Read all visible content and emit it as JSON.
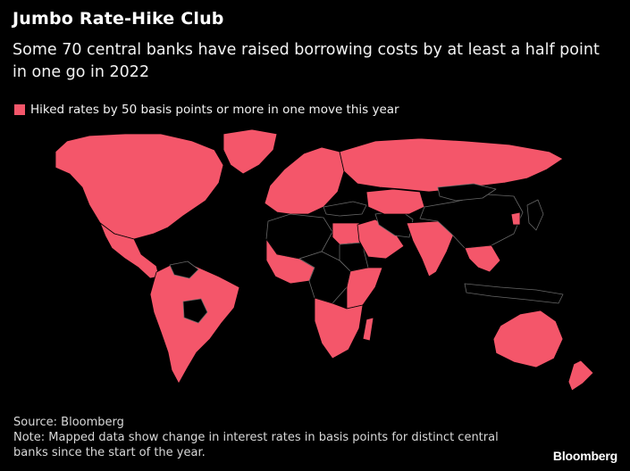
{
  "header": {
    "title": "Jumbo Rate-Hike Club",
    "subtitle": "Some 70 central banks have raised borrowing costs by at least a half point in one go in 2022"
  },
  "legend": {
    "label": "Hiked rates by 50 basis points or more in one move this year"
  },
  "footer": {
    "source": "Source: Bloomberg",
    "note": "Note: Mapped data show change in interest rates in basis points for distinct central banks since the start of the year."
  },
  "brand": "Bloomberg",
  "colors": {
    "hiked": "#f4566a",
    "not_hiked": "#000000",
    "border": "#000000",
    "background": "#000000"
  },
  "map_regions": [
    {
      "name": "North America",
      "hiked": true
    },
    {
      "name": "Greenland",
      "hiked": true
    },
    {
      "name": "Mexico and Central America",
      "hiked": true
    },
    {
      "name": "South America",
      "hiked": true
    },
    {
      "name": "Bolivia",
      "hiked": false
    },
    {
      "name": "Venezuela",
      "hiked": false
    },
    {
      "name": "Europe",
      "hiked": true
    },
    {
      "name": "Russia",
      "hiked": true
    },
    {
      "name": "Turkey",
      "hiked": false
    },
    {
      "name": "North Africa (west)",
      "hiked": false
    },
    {
      "name": "Egypt",
      "hiked": true
    },
    {
      "name": "Sudan",
      "hiked": false
    },
    {
      "name": "West Africa",
      "hiked": true
    },
    {
      "name": "Central Africa",
      "hiked": false
    },
    {
      "name": "East Africa",
      "hiked": true
    },
    {
      "name": "Southern Africa",
      "hiked": true
    },
    {
      "name": "Madagascar",
      "hiked": true
    },
    {
      "name": "Arabian Peninsula",
      "hiked": true
    },
    {
      "name": "Iran",
      "hiked": false
    },
    {
      "name": "Central Asia",
      "hiked": true
    },
    {
      "name": "India",
      "hiked": true
    },
    {
      "name": "China",
      "hiked": false
    },
    {
      "name": "Mongolia",
      "hiked": false
    },
    {
      "name": "South Korea",
      "hiked": true
    },
    {
      "name": "Japan",
      "hiked": false
    },
    {
      "name": "Southeast Asia",
      "hiked": true
    },
    {
      "name": "Indonesia",
      "hiked": false
    },
    {
      "name": "Australia",
      "hiked": true
    },
    {
      "name": "New Zealand",
      "hiked": true
    }
  ]
}
